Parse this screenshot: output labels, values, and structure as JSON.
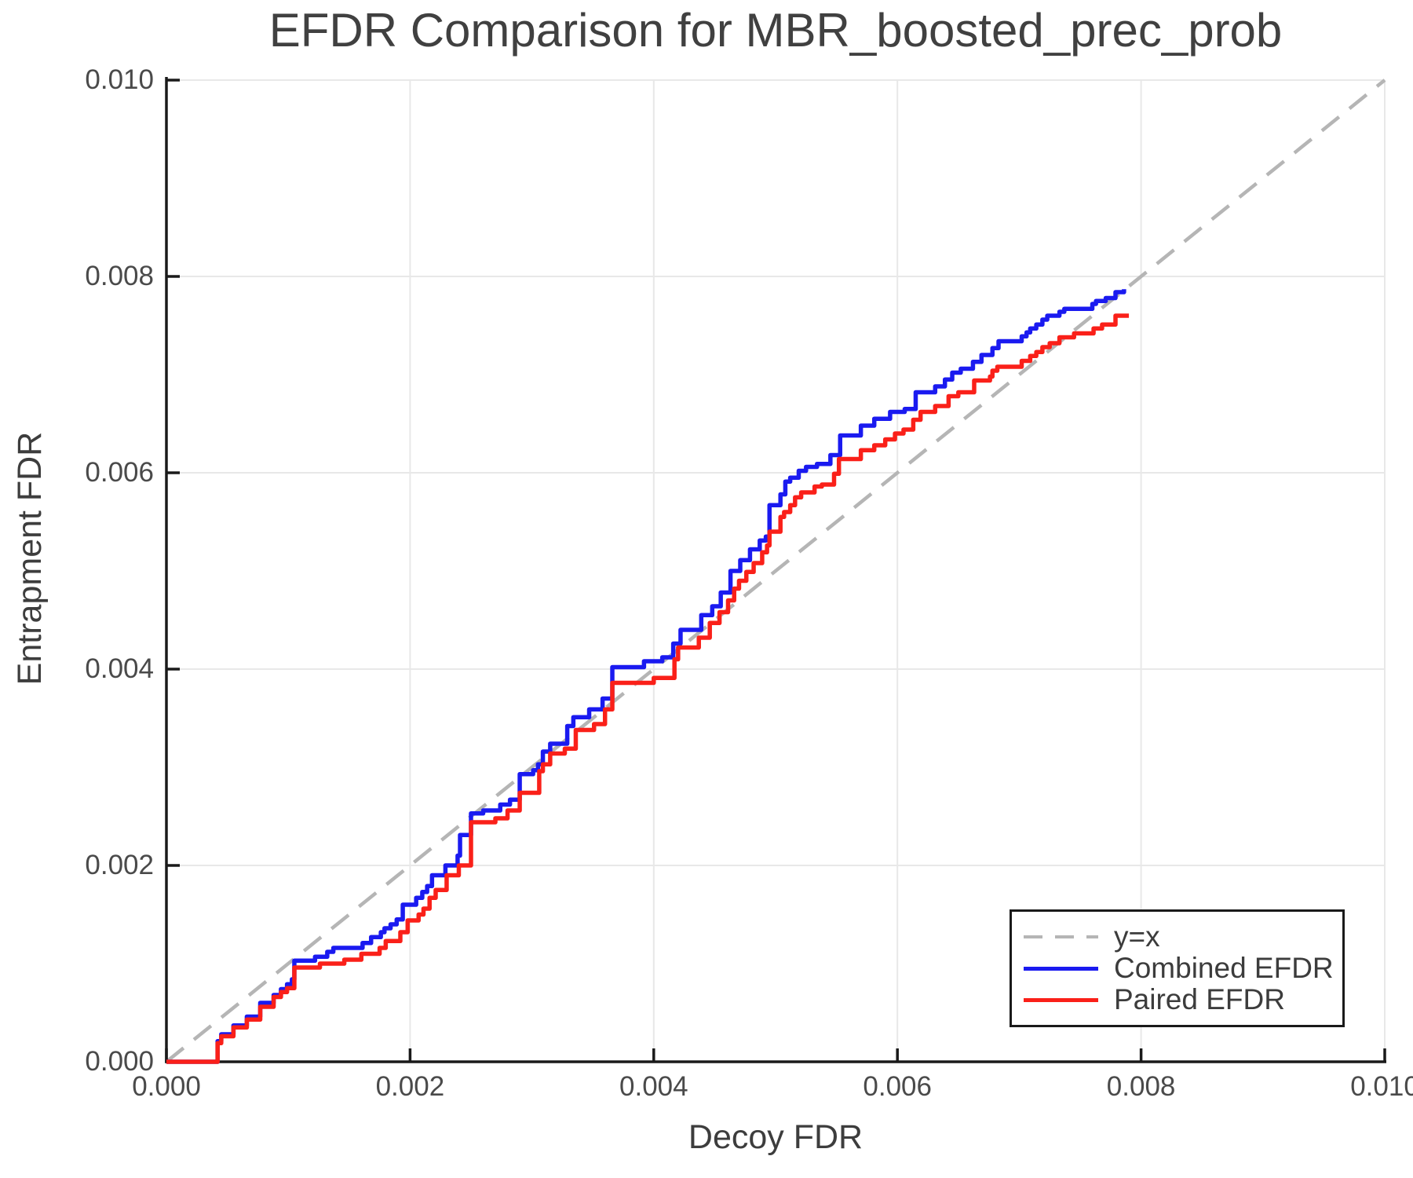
{
  "title": "EFDR Comparison for MBR_boosted_prec_prob",
  "axes": {
    "xlabel": "Decoy FDR",
    "ylabel": "Entrapment FDR",
    "x_ticks": [
      {
        "label": "0.000",
        "value": 0.0
      },
      {
        "label": "0.002",
        "value": 0.002
      },
      {
        "label": "0.004",
        "value": 0.004
      },
      {
        "label": "0.006",
        "value": 0.006
      },
      {
        "label": "0.008",
        "value": 0.008
      },
      {
        "label": "0.010",
        "value": 0.01
      }
    ],
    "y_ticks": [
      {
        "label": "0.000",
        "value": 0.0
      },
      {
        "label": "0.002",
        "value": 0.002
      },
      {
        "label": "0.004",
        "value": 0.004
      },
      {
        "label": "0.006",
        "value": 0.006
      },
      {
        "label": "0.008",
        "value": 0.008
      },
      {
        "label": "0.010",
        "value": 0.01
      }
    ]
  },
  "legend": {
    "items": [
      {
        "label": "y=x",
        "color": "#b5b5b5",
        "dashed": true
      },
      {
        "label": "Combined EFDR",
        "color": "#1a1af0",
        "dashed": false
      },
      {
        "label": "Paired EFDR",
        "color": "#fa2019",
        "dashed": false
      }
    ]
  },
  "colors": {
    "grid": "#e8e8e8",
    "spine": "#1a1a1a",
    "identity": "#b5b5b5",
    "combined": "#1a1af0",
    "paired": "#fa2019"
  },
  "chart_data": {
    "type": "line",
    "title": "EFDR Comparison for MBR_boosted_prec_prob",
    "xlabel": "Decoy FDR",
    "ylabel": "Entrapment FDR",
    "xlim": [
      0.0,
      0.01
    ],
    "ylim": [
      0.0,
      0.01
    ],
    "grid": true,
    "legend_position": "lower right",
    "series": [
      {
        "name": "y=x",
        "type": "identity-dashed",
        "color": "#b5b5b5",
        "points": [
          [
            0.0,
            0.0
          ],
          [
            0.01,
            0.01
          ]
        ]
      },
      {
        "name": "Combined EFDR",
        "type": "step",
        "color": "#1a1af0",
        "points": [
          [
            0.0,
            0.0
          ],
          [
            0.00042,
            0.00021
          ],
          [
            0.00045,
            0.00028
          ],
          [
            0.00055,
            0.00037
          ],
          [
            0.00066,
            0.00046
          ],
          [
            0.00077,
            0.0006
          ],
          [
            0.00088,
            0.00068
          ],
          [
            0.00094,
            0.00074
          ],
          [
            0.00099,
            0.00079
          ],
          [
            0.00103,
            0.00084
          ],
          [
            0.00105,
            0.00103
          ],
          [
            0.00122,
            0.00107
          ],
          [
            0.00132,
            0.00112
          ],
          [
            0.00137,
            0.00116
          ],
          [
            0.00161,
            0.00121
          ],
          [
            0.00168,
            0.00127
          ],
          [
            0.00176,
            0.00132
          ],
          [
            0.00179,
            0.00136
          ],
          [
            0.00184,
            0.0014
          ],
          [
            0.00189,
            0.00145
          ],
          [
            0.00194,
            0.0016
          ],
          [
            0.00205,
            0.00167
          ],
          [
            0.0021,
            0.00173
          ],
          [
            0.00214,
            0.00179
          ],
          [
            0.00218,
            0.0019
          ],
          [
            0.00229,
            0.002
          ],
          [
            0.00239,
            0.0021
          ],
          [
            0.00241,
            0.00231
          ],
          [
            0.0025,
            0.00253
          ],
          [
            0.0026,
            0.00256
          ],
          [
            0.00274,
            0.00262
          ],
          [
            0.00282,
            0.00267
          ],
          [
            0.0029,
            0.00293
          ],
          [
            0.00301,
            0.00297
          ],
          [
            0.00305,
            0.00303
          ],
          [
            0.00309,
            0.00316
          ],
          [
            0.00315,
            0.00324
          ],
          [
            0.00329,
            0.00342
          ],
          [
            0.00334,
            0.00351
          ],
          [
            0.00347,
            0.00359
          ],
          [
            0.00358,
            0.0037
          ],
          [
            0.00366,
            0.00402
          ],
          [
            0.00392,
            0.00408
          ],
          [
            0.00407,
            0.00412
          ],
          [
            0.00416,
            0.00426
          ],
          [
            0.00422,
            0.0044
          ],
          [
            0.00439,
            0.00455
          ],
          [
            0.00448,
            0.00464
          ],
          [
            0.00455,
            0.00478
          ],
          [
            0.00463,
            0.005
          ],
          [
            0.00471,
            0.00511
          ],
          [
            0.00479,
            0.00522
          ],
          [
            0.00487,
            0.00531
          ],
          [
            0.00492,
            0.00535
          ],
          [
            0.00495,
            0.00567
          ],
          [
            0.00504,
            0.00578
          ],
          [
            0.00508,
            0.00591
          ],
          [
            0.00512,
            0.00595
          ],
          [
            0.00519,
            0.00602
          ],
          [
            0.00525,
            0.00606
          ],
          [
            0.00534,
            0.00609
          ],
          [
            0.00545,
            0.00618
          ],
          [
            0.00553,
            0.00638
          ],
          [
            0.0057,
            0.00648
          ],
          [
            0.00581,
            0.00655
          ],
          [
            0.00594,
            0.00662
          ],
          [
            0.00606,
            0.00665
          ],
          [
            0.00615,
            0.00682
          ],
          [
            0.00631,
            0.00688
          ],
          [
            0.00639,
            0.00695
          ],
          [
            0.00645,
            0.00702
          ],
          [
            0.00652,
            0.00706
          ],
          [
            0.00662,
            0.00713
          ],
          [
            0.00669,
            0.0072
          ],
          [
            0.00678,
            0.00727
          ],
          [
            0.00683,
            0.00734
          ],
          [
            0.00702,
            0.00739
          ],
          [
            0.00706,
            0.00743
          ],
          [
            0.00709,
            0.00747
          ],
          [
            0.00714,
            0.00751
          ],
          [
            0.00719,
            0.00756
          ],
          [
            0.00723,
            0.0076
          ],
          [
            0.00733,
            0.00764
          ],
          [
            0.00737,
            0.00767
          ],
          [
            0.0076,
            0.00772
          ],
          [
            0.00763,
            0.00775
          ],
          [
            0.00771,
            0.00778
          ],
          [
            0.00779,
            0.00784
          ],
          [
            0.00786,
            0.00787
          ]
        ]
      },
      {
        "name": "Paired EFDR",
        "type": "step",
        "color": "#fa2019",
        "points": [
          [
            0.0,
            0.0
          ],
          [
            0.00042,
            0.00019
          ],
          [
            0.00045,
            0.00026
          ],
          [
            0.00055,
            0.00035
          ],
          [
            0.00066,
            0.00043
          ],
          [
            0.00077,
            0.00056
          ],
          [
            0.00088,
            0.00066
          ],
          [
            0.00094,
            0.00071
          ],
          [
            0.00099,
            0.00075
          ],
          [
            0.00105,
            0.00096
          ],
          [
            0.00126,
            0.001
          ],
          [
            0.00146,
            0.00104
          ],
          [
            0.0016,
            0.0011
          ],
          [
            0.00175,
            0.00116
          ],
          [
            0.0018,
            0.00123
          ],
          [
            0.00192,
            0.00132
          ],
          [
            0.00198,
            0.00144
          ],
          [
            0.00207,
            0.0015
          ],
          [
            0.00211,
            0.00156
          ],
          [
            0.00216,
            0.00167
          ],
          [
            0.00221,
            0.00175
          ],
          [
            0.0023,
            0.0019
          ],
          [
            0.0024,
            0.002
          ],
          [
            0.0025,
            0.00244
          ],
          [
            0.0027,
            0.00248
          ],
          [
            0.0028,
            0.00256
          ],
          [
            0.0029,
            0.00274
          ],
          [
            0.00306,
            0.00296
          ],
          [
            0.00309,
            0.00303
          ],
          [
            0.00315,
            0.00314
          ],
          [
            0.00327,
            0.00319
          ],
          [
            0.00336,
            0.00338
          ],
          [
            0.00351,
            0.00344
          ],
          [
            0.0036,
            0.00359
          ],
          [
            0.00366,
            0.00386
          ],
          [
            0.004,
            0.00391
          ],
          [
            0.00417,
            0.0041
          ],
          [
            0.0042,
            0.00422
          ],
          [
            0.00437,
            0.00432
          ],
          [
            0.00446,
            0.00447
          ],
          [
            0.00454,
            0.00458
          ],
          [
            0.00461,
            0.0047
          ],
          [
            0.00466,
            0.00482
          ],
          [
            0.0047,
            0.0049
          ],
          [
            0.00476,
            0.00499
          ],
          [
            0.00482,
            0.00508
          ],
          [
            0.00489,
            0.00519
          ],
          [
            0.00493,
            0.00526
          ],
          [
            0.00495,
            0.0054
          ],
          [
            0.00504,
            0.00555
          ],
          [
            0.00507,
            0.0056
          ],
          [
            0.00512,
            0.00567
          ],
          [
            0.00516,
            0.00575
          ],
          [
            0.00521,
            0.0058
          ],
          [
            0.00532,
            0.00586
          ],
          [
            0.00538,
            0.00588
          ],
          [
            0.00548,
            0.00599
          ],
          [
            0.00552,
            0.00614
          ],
          [
            0.0057,
            0.00623
          ],
          [
            0.00581,
            0.00628
          ],
          [
            0.0059,
            0.00634
          ],
          [
            0.00598,
            0.0064
          ],
          [
            0.00605,
            0.00644
          ],
          [
            0.00613,
            0.00654
          ],
          [
            0.00619,
            0.00662
          ],
          [
            0.00631,
            0.00668
          ],
          [
            0.00642,
            0.00678
          ],
          [
            0.0065,
            0.00682
          ],
          [
            0.00663,
            0.00694
          ],
          [
            0.00676,
            0.00698
          ],
          [
            0.00678,
            0.00704
          ],
          [
            0.00682,
            0.00708
          ],
          [
            0.00702,
            0.00714
          ],
          [
            0.00709,
            0.00719
          ],
          [
            0.00714,
            0.00723
          ],
          [
            0.00719,
            0.00728
          ],
          [
            0.00725,
            0.00732
          ],
          [
            0.00733,
            0.00738
          ],
          [
            0.00745,
            0.00742
          ],
          [
            0.00761,
            0.00747
          ],
          [
            0.00768,
            0.00751
          ],
          [
            0.00779,
            0.0076
          ],
          [
            0.0079,
            0.0076
          ]
        ]
      }
    ]
  }
}
